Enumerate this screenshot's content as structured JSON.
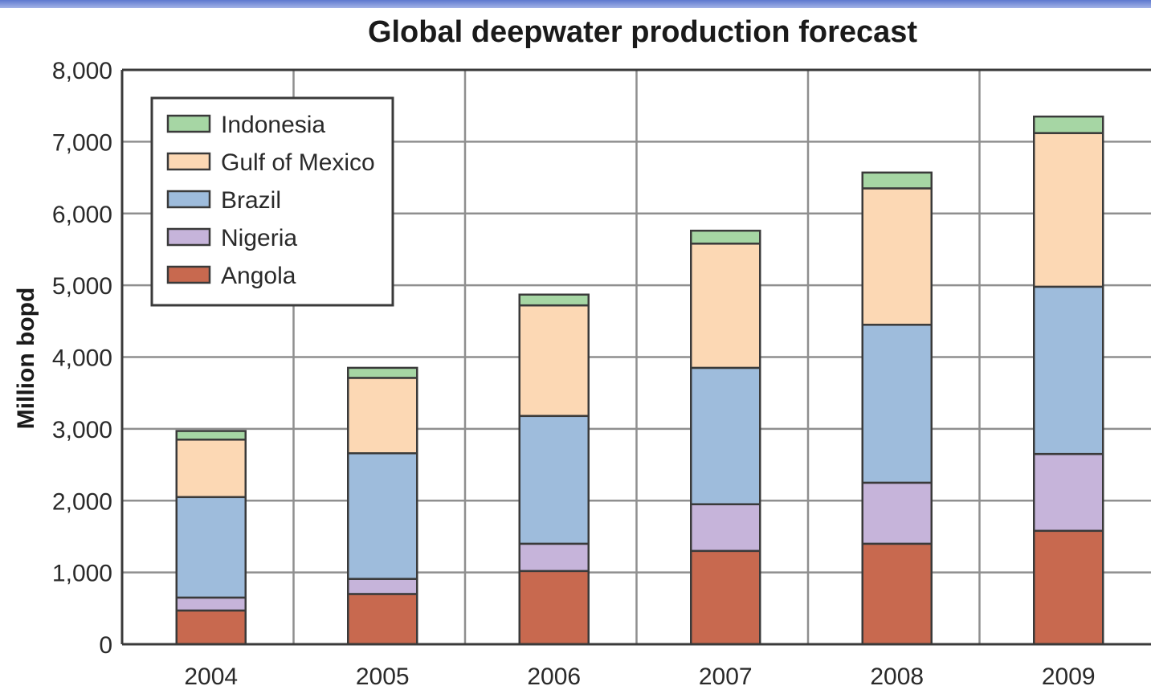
{
  "chart_data": {
    "type": "bar",
    "stacked": true,
    "title": "Global deepwater production forecast",
    "xlabel": "",
    "ylabel": "Million bopd",
    "ylim": [
      0,
      8000
    ],
    "yticks": [
      0,
      1000,
      2000,
      3000,
      4000,
      5000,
      6000,
      7000,
      8000
    ],
    "ytick_labels": [
      "0",
      "1,000",
      "2,000",
      "3,000",
      "4,000",
      "5,000",
      "6,000",
      "7,000",
      "8,000"
    ],
    "grid": true,
    "legend_position": "top-left",
    "categories": [
      "2004",
      "2005",
      "2006",
      "2007",
      "2008",
      "2009"
    ],
    "series": [
      {
        "name": "Angola",
        "color": "#c8694f",
        "values": [
          470,
          700,
          1020,
          1300,
          1400,
          1580
        ]
      },
      {
        "name": "Nigeria",
        "color": "#c6b4da",
        "values": [
          180,
          210,
          380,
          650,
          850,
          1070
        ]
      },
      {
        "name": "Brazil",
        "color": "#9ebcdc",
        "values": [
          1400,
          1750,
          1780,
          1900,
          2200,
          2330
        ]
      },
      {
        "name": "Gulf of Mexico",
        "color": "#fcd8b4",
        "values": [
          800,
          1050,
          1540,
          1730,
          1900,
          2140
        ]
      },
      {
        "name": "Indonesia",
        "color": "#a6d6a4",
        "values": [
          120,
          140,
          150,
          180,
          220,
          230
        ]
      }
    ],
    "legend_order": [
      "Indonesia",
      "Gulf of Mexico",
      "Brazil",
      "Nigeria",
      "Angola"
    ]
  }
}
